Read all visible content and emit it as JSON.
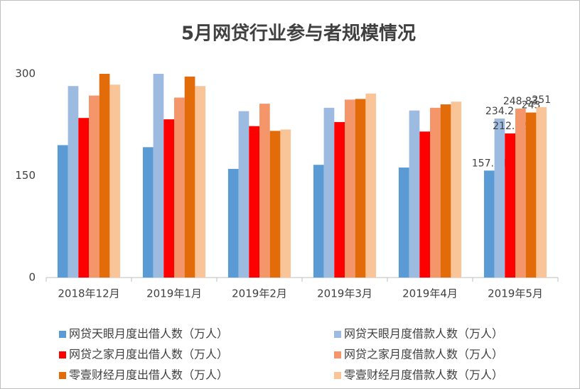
{
  "chart_data": {
    "type": "bar",
    "title": "5月网贷行业参与者规模情况",
    "categories": [
      "2018年12月",
      "2019年1月",
      "2019年2月",
      "2019年3月",
      "2019年4月",
      "2019年5月"
    ],
    "series": [
      {
        "name": "网贷天眼月度出借人数（万人）",
        "color": "#5b9bd5",
        "values": [
          195,
          192,
          160,
          166,
          162,
          157.54
        ]
      },
      {
        "name": "网贷天眼月度借款人数（万人）",
        "color": "#9dbbe0",
        "values": [
          282,
          300,
          245,
          250,
          246,
          234.2
        ]
      },
      {
        "name": "网贷之家月度出借人数（万人）",
        "color": "#ff0000",
        "values": [
          235,
          233,
          223,
          229,
          215,
          212.22
        ]
      },
      {
        "name": "网贷之家月度借款人数（万人）",
        "color": "#f4956a",
        "values": [
          268,
          265,
          256,
          262,
          250,
          248.83
        ]
      },
      {
        "name": "零壹财经月度出借人数（万人）",
        "color": "#e26b0a",
        "values": [
          300,
          296,
          216,
          263,
          255,
          243
        ]
      },
      {
        "name": "零壹财经月度借款人数（万人）",
        "color": "#f9c497",
        "values": [
          284,
          282,
          218,
          271,
          259,
          251
        ]
      }
    ],
    "ylim": [
      0,
      300
    ],
    "yticks": [
      0,
      150,
      300
    ],
    "grid": false
  }
}
